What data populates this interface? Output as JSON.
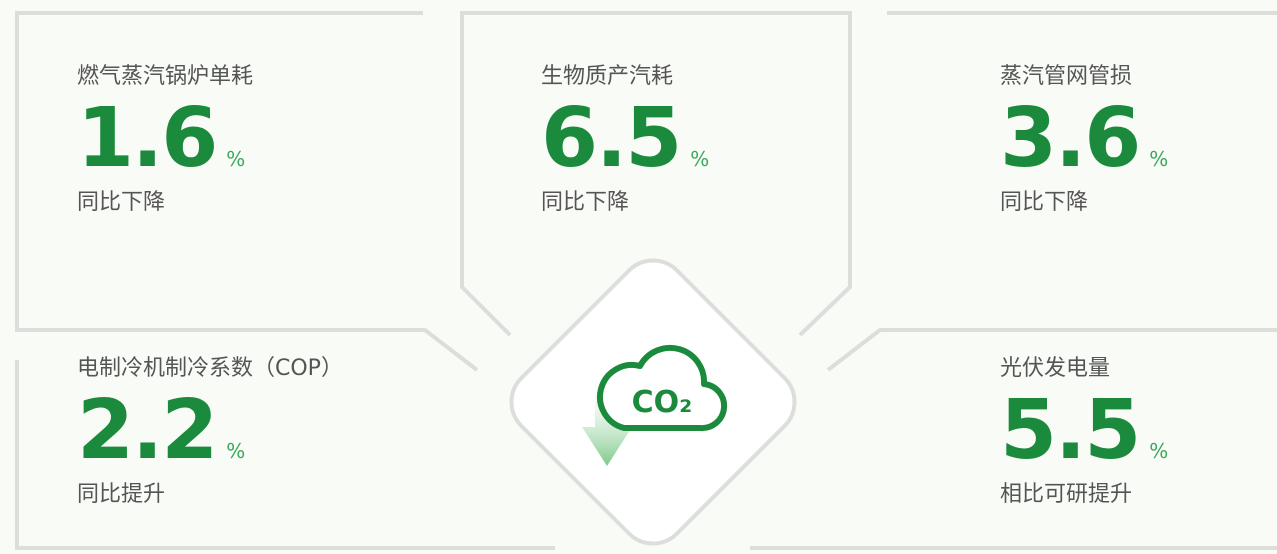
{
  "cards": [
    {
      "label": "燃气蒸汽锅炉单耗",
      "value": 1.6,
      "unit": "%",
      "note": "同比下降"
    },
    {
      "label": "生物质产汽耗",
      "value": 6.5,
      "unit": "%",
      "note": "同比下降"
    },
    {
      "label": "蒸汽管网管损",
      "value": 3.6,
      "unit": "%",
      "note": "同比下降"
    },
    {
      "label": "电制冷机制冷系数（COP）",
      "value": 2.2,
      "unit": "%",
      "note": "同比提升"
    },
    {
      "label": "光伏发电量",
      "value": 5.5,
      "unit": "%",
      "note": "相比可研提升"
    }
  ],
  "icon": {
    "label": "CO₂"
  }
}
